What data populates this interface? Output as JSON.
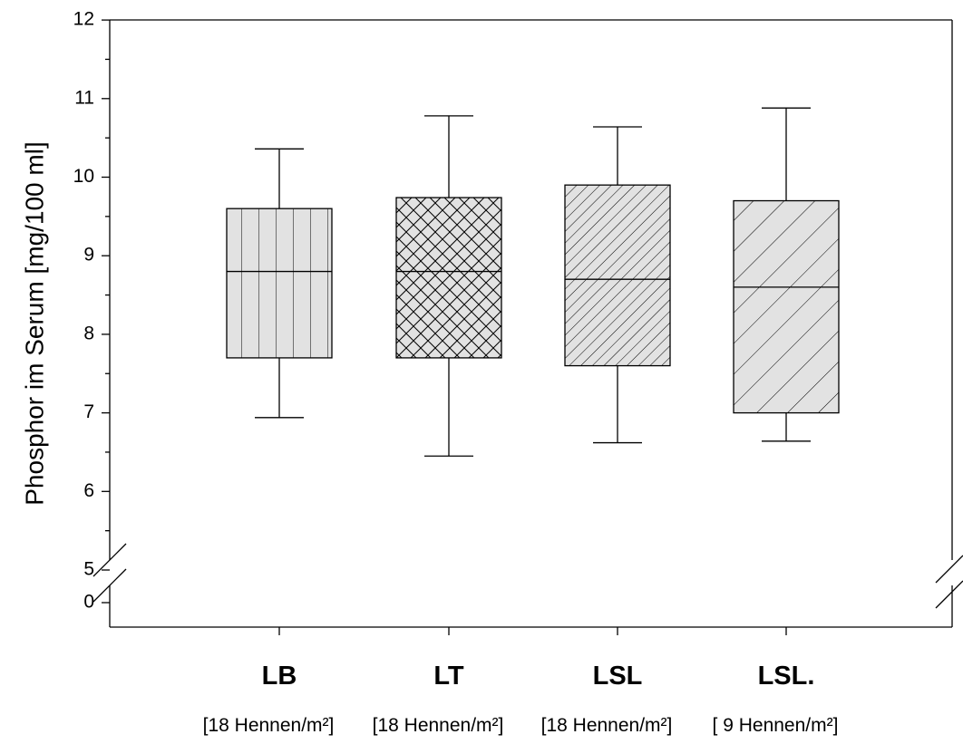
{
  "chart_data": {
    "type": "box",
    "ylabel": "Phosphor im Serum [mg/100 ml]",
    "xlabel": "",
    "ylim": [
      0,
      12
    ],
    "axis_break": {
      "below": 0,
      "above": 5
    },
    "y_ticks": [
      0,
      5,
      6,
      7,
      8,
      9,
      10,
      11,
      12
    ],
    "y_tick_labels": [
      "0",
      "5",
      "6",
      "7",
      "8",
      "9",
      "10",
      "11",
      "12"
    ],
    "grid": false,
    "categories": [
      "LB",
      "LT",
      "LSL",
      "LSL."
    ],
    "subcategories": [
      "[18 Hennen/m²]",
      "[18 Hennen/m²]",
      "[18 Hennen/m²]",
      "[ 9 Hennen/m²]"
    ],
    "boxes": [
      {
        "whisker_low": 6.94,
        "q1": 7.7,
        "median": 8.8,
        "q3": 9.6,
        "whisker_high": 10.36,
        "pattern": "vertical"
      },
      {
        "whisker_low": 6.45,
        "q1": 7.7,
        "median": 8.8,
        "q3": 9.74,
        "whisker_high": 10.78,
        "pattern": "crosshatch"
      },
      {
        "whisker_low": 6.62,
        "q1": 7.6,
        "median": 8.7,
        "q3": 9.9,
        "whisker_high": 10.64,
        "pattern": "diagonal-fine"
      },
      {
        "whisker_low": 6.64,
        "q1": 7.0,
        "median": 8.6,
        "q3": 9.7,
        "whisker_high": 10.88,
        "pattern": "diagonal-wide"
      }
    ],
    "colors": {
      "box_fill": "#e2e2e2",
      "stroke": "#000000"
    }
  }
}
